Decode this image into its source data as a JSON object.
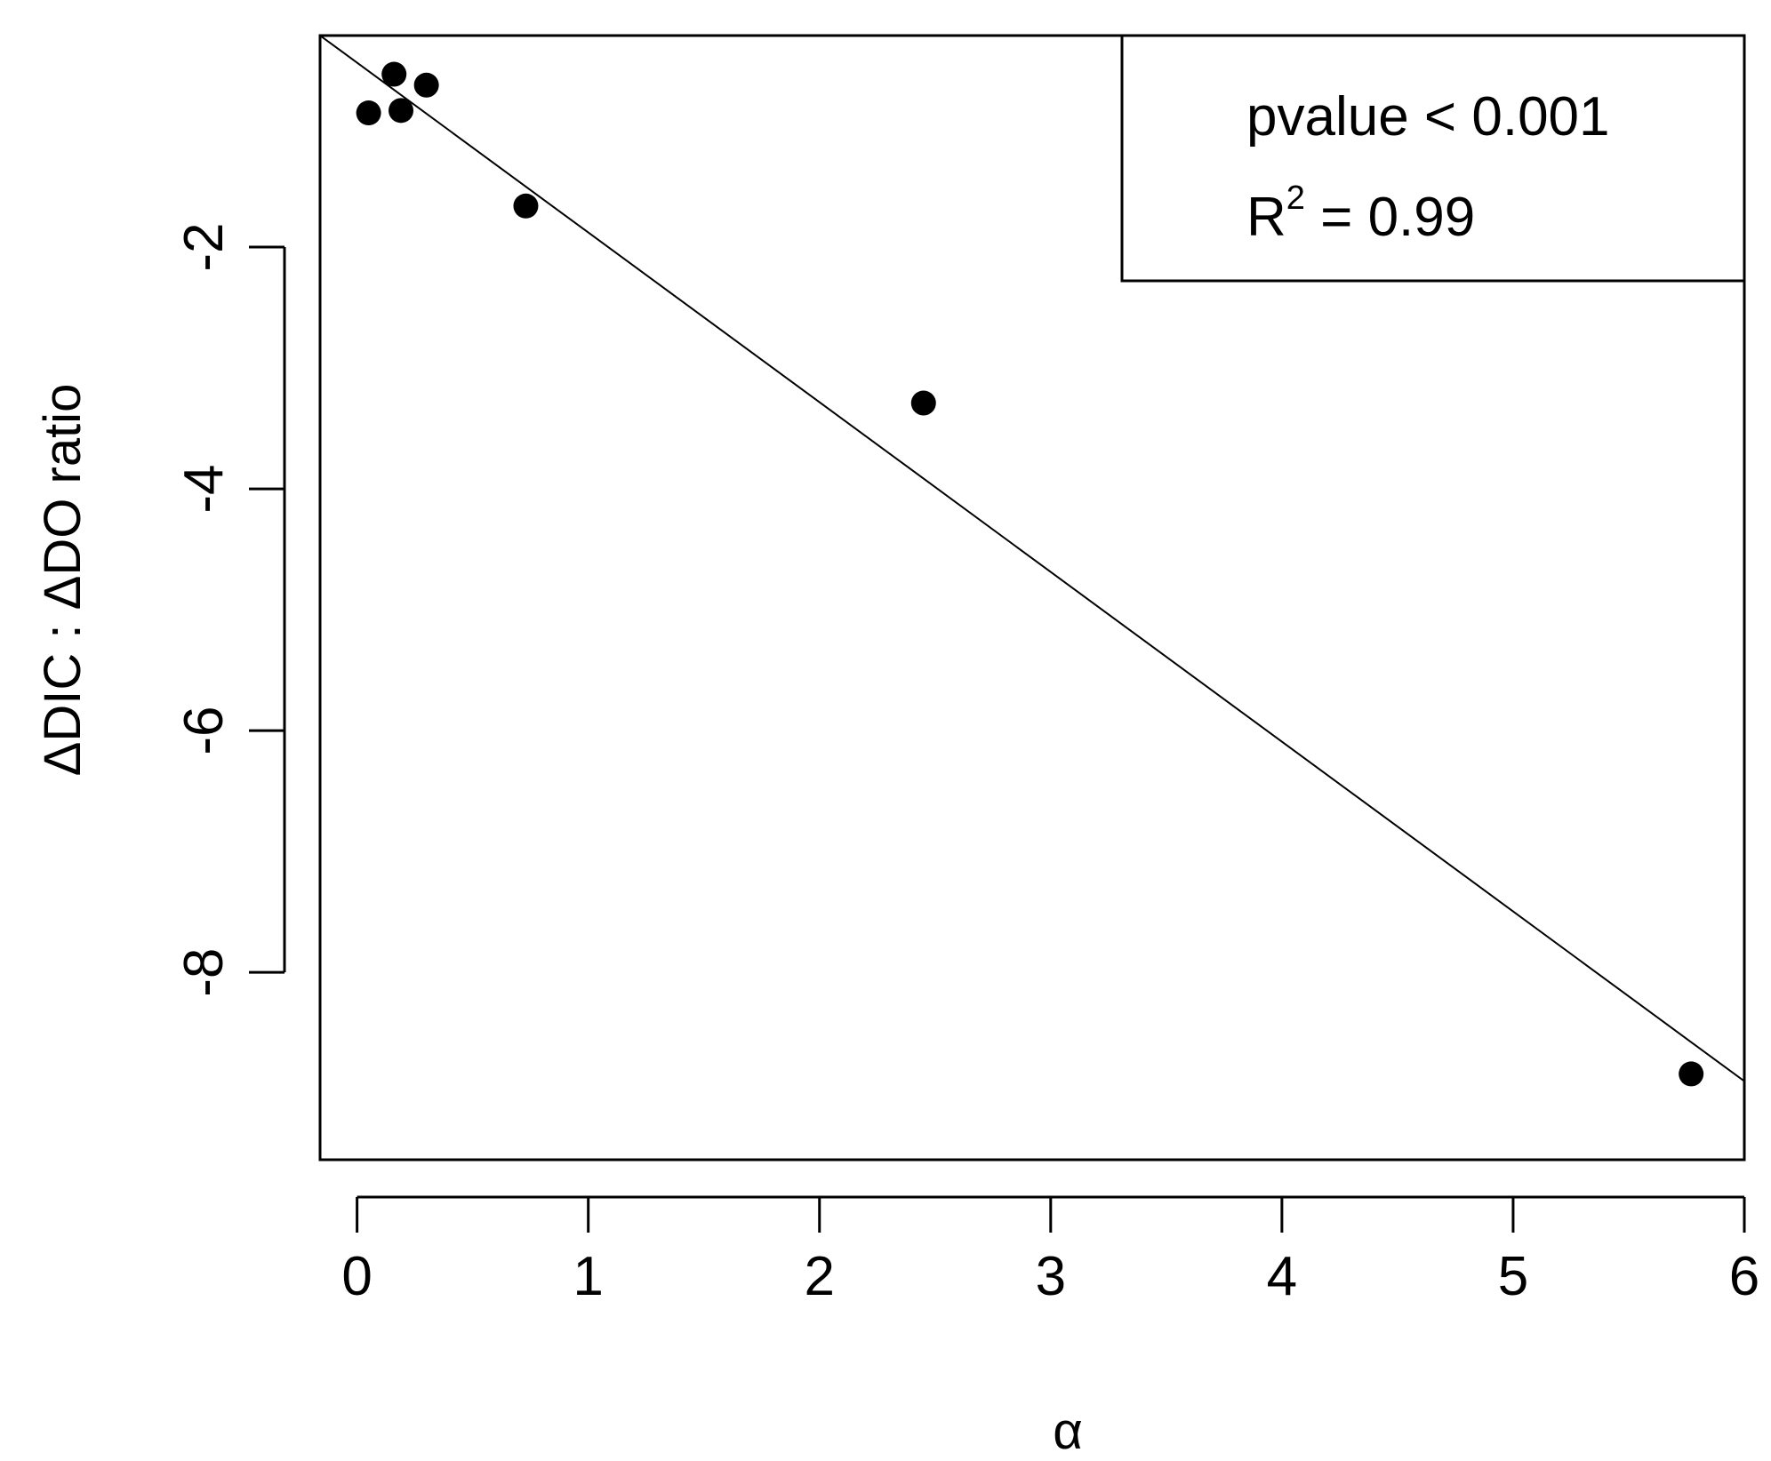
{
  "chart_data": {
    "type": "scatter",
    "xlabel": "α",
    "ylabel": "ΔDIC : ΔDO ratio",
    "xlim": [
      -0.16,
      6.0
    ],
    "ylim": [
      -9.55,
      -0.25
    ],
    "x_ticks": [
      0,
      1,
      2,
      3,
      4,
      5,
      6
    ],
    "x_tick_labels": [
      "0",
      "1",
      "2",
      "3",
      "4",
      "5",
      "6"
    ],
    "y_ticks": [
      -2,
      -4,
      -6,
      -8
    ],
    "y_tick_labels": [
      "-2",
      "-4",
      "-6",
      "-8"
    ],
    "points": [
      {
        "x": 0.05,
        "y": -0.89
      },
      {
        "x": 0.16,
        "y": -0.57
      },
      {
        "x": 0.19,
        "y": -0.87
      },
      {
        "x": 0.3,
        "y": -0.66
      },
      {
        "x": 0.73,
        "y": -1.66
      },
      {
        "x": 2.45,
        "y": -3.29
      },
      {
        "x": 5.77,
        "y": -8.84
      }
    ],
    "fit_line": {
      "x": [
        -0.16,
        6.0
      ],
      "y": [
        -0.25,
        -8.9
      ]
    },
    "legend": {
      "position": "top-right",
      "pvalue_text": "pvalue < 0.001",
      "r2_prefix": "R",
      "r2_superscript": "2",
      "r2_suffix": " = 0.99"
    },
    "grid": false
  }
}
